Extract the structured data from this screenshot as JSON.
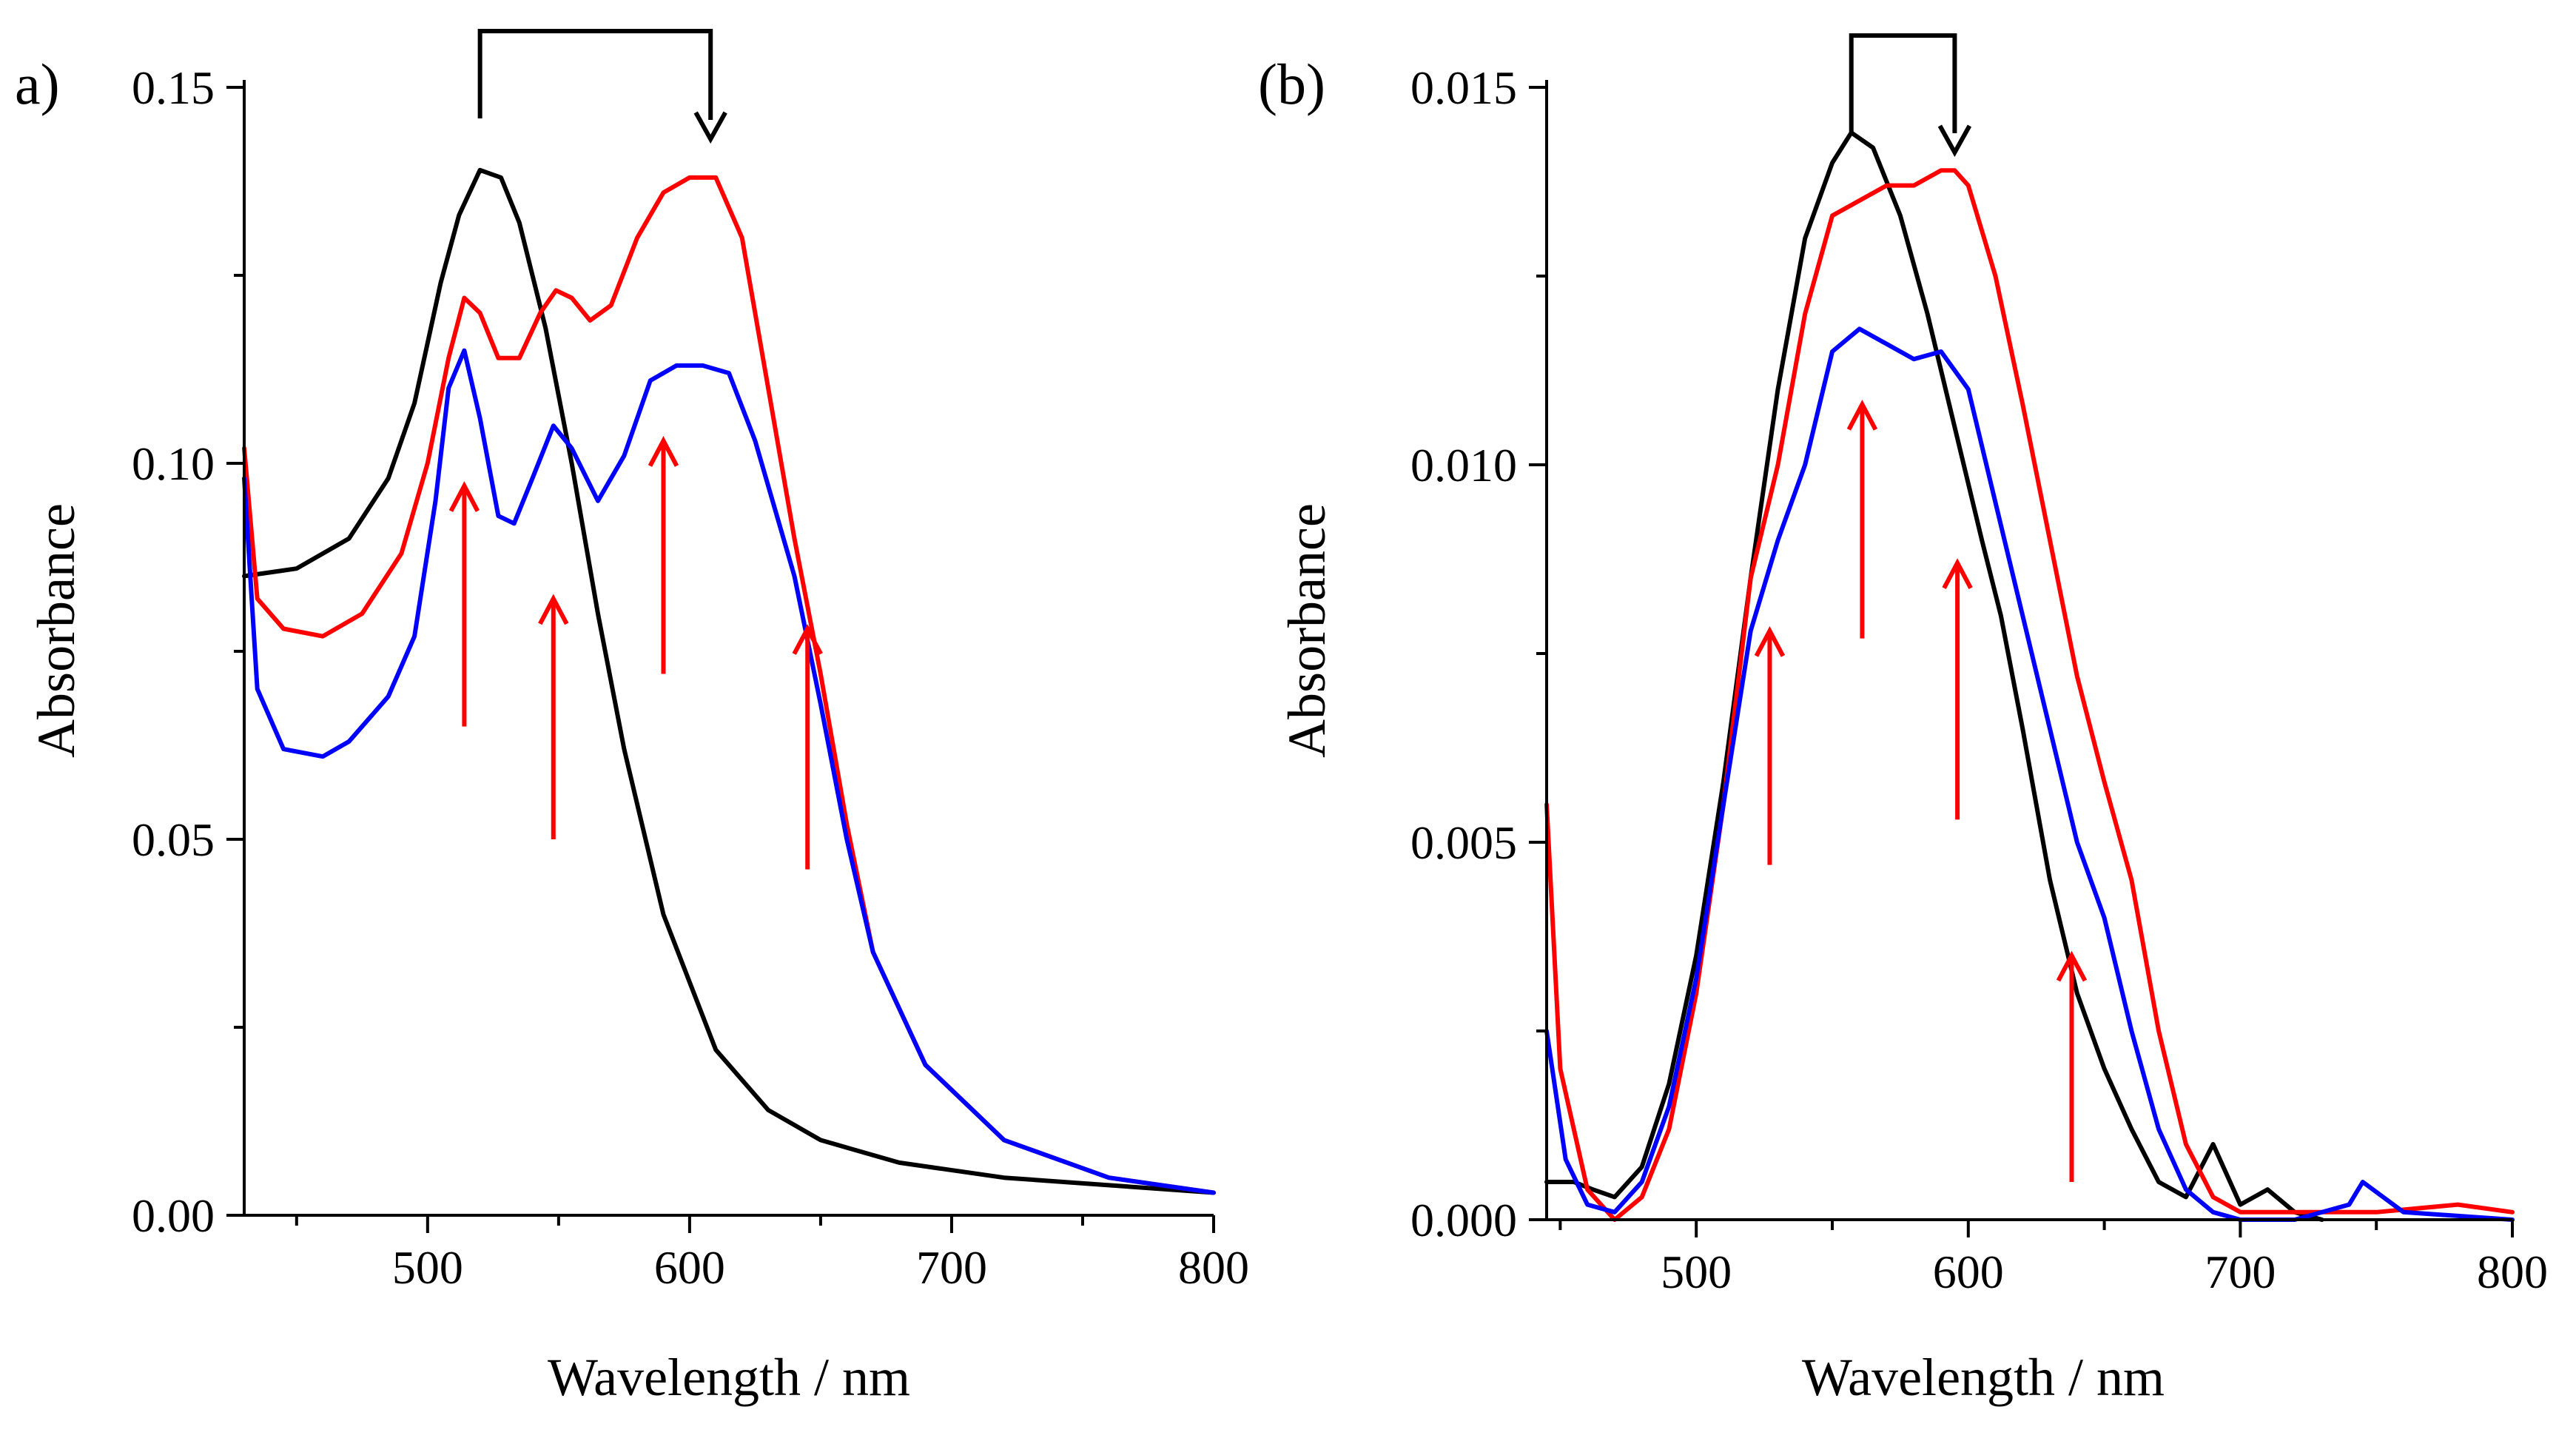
{
  "chart_data": [
    {
      "type": "line",
      "panel_label": "a)",
      "title": "",
      "xlabel": "Wavelength / nm",
      "ylabel": "Absorbance",
      "xlim": [
        430,
        800
      ],
      "ylim": [
        0.0,
        0.15
      ],
      "x_ticks": [
        500,
        600,
        700,
        800
      ],
      "x_tick_labels": [
        "500",
        "600",
        "700",
        "800"
      ],
      "x_minor_ticks": [
        450,
        550,
        650,
        750
      ],
      "y_ticks": [
        0.0,
        0.05,
        0.1,
        0.15
      ],
      "y_tick_labels": [
        "0.00",
        "0.05",
        "0.10",
        "0.15"
      ],
      "y_minor_ticks": [
        0.025,
        0.075,
        0.125
      ],
      "series": [
        {
          "name": "black",
          "color": "#000000",
          "x": [
            430,
            450,
            470,
            485,
            495,
            505,
            512,
            520,
            528,
            535,
            545,
            555,
            565,
            575,
            590,
            610,
            630,
            650,
            680,
            720,
            760,
            800
          ],
          "y": [
            0.085,
            0.086,
            0.09,
            0.098,
            0.108,
            0.124,
            0.133,
            0.139,
            0.138,
            0.132,
            0.118,
            0.1,
            0.08,
            0.062,
            0.04,
            0.022,
            0.014,
            0.01,
            0.007,
            0.005,
            0.004,
            0.003
          ]
        },
        {
          "name": "red",
          "color": "#ff0000",
          "x": [
            430,
            435,
            445,
            460,
            475,
            490,
            500,
            508,
            514,
            520,
            527,
            535,
            543,
            549,
            555,
            562,
            570,
            580,
            590,
            600,
            610,
            620,
            630,
            640,
            650,
            660,
            670,
            690,
            720,
            760,
            800
          ],
          "y": [
            0.102,
            0.082,
            0.078,
            0.077,
            0.08,
            0.088,
            0.1,
            0.114,
            0.122,
            0.12,
            0.114,
            0.114,
            0.12,
            0.123,
            0.122,
            0.119,
            0.121,
            0.13,
            0.136,
            0.138,
            0.138,
            0.13,
            0.11,
            0.09,
            0.072,
            0.052,
            0.035,
            0.02,
            0.01,
            0.005,
            0.003
          ]
        },
        {
          "name": "blue",
          "color": "#0000ff",
          "x": [
            430,
            435,
            445,
            460,
            470,
            485,
            495,
            503,
            508,
            514,
            520,
            527,
            533,
            540,
            548,
            555,
            565,
            575,
            585,
            595,
            605,
            615,
            625,
            640,
            650,
            660,
            670,
            690,
            720,
            760,
            800
          ],
          "y": [
            0.098,
            0.07,
            0.062,
            0.061,
            0.063,
            0.069,
            0.077,
            0.095,
            0.11,
            0.115,
            0.106,
            0.093,
            0.092,
            0.098,
            0.105,
            0.102,
            0.095,
            0.101,
            0.111,
            0.113,
            0.113,
            0.112,
            0.103,
            0.085,
            0.068,
            0.05,
            0.035,
            0.02,
            0.01,
            0.005,
            0.003
          ]
        }
      ],
      "annotations": {
        "bracket_arrow": {
          "from_x": 520,
          "to_x": 608,
          "color": "#000000"
        },
        "up_arrows": {
          "x": [
            514,
            548,
            590,
            645
          ],
          "y_from": [
            0.065,
            0.05,
            0.072,
            0.046
          ],
          "y_to": [
            0.097,
            0.082,
            0.103,
            0.078
          ],
          "color": "#ff0000"
        }
      }
    },
    {
      "type": "line",
      "panel_label": "(b)",
      "title": "",
      "xlabel": "Wavelength / nm",
      "ylabel": "Absorbance",
      "xlim": [
        445,
        800
      ],
      "ylim": [
        0.0,
        0.015
      ],
      "x_ticks": [
        500,
        600,
        700,
        800
      ],
      "x_tick_labels": [
        "500",
        "600",
        "700",
        "800"
      ],
      "x_minor_ticks": [
        450,
        550,
        650,
        750
      ],
      "y_ticks": [
        0.0,
        0.005,
        0.01,
        0.015
      ],
      "y_tick_labels": [
        "0.000",
        "0.005",
        "0.010",
        "0.015"
      ],
      "y_minor_ticks": [
        0.0025,
        0.0075,
        0.0125
      ],
      "series": [
        {
          "name": "black",
          "color": "#000000",
          "x": [
            445,
            455,
            462,
            470,
            480,
            490,
            500,
            510,
            520,
            530,
            540,
            550,
            557,
            565,
            575,
            585,
            595,
            605,
            612,
            620,
            630,
            640,
            650,
            660,
            670,
            680,
            690,
            700,
            710,
            720,
            730
          ],
          "y": [
            0.0005,
            0.0005,
            0.0004,
            0.0003,
            0.0007,
            0.0018,
            0.0035,
            0.0058,
            0.0085,
            0.011,
            0.013,
            0.014,
            0.0144,
            0.0142,
            0.0133,
            0.012,
            0.0105,
            0.009,
            0.008,
            0.0065,
            0.0045,
            0.003,
            0.002,
            0.0012,
            0.0005,
            0.0003,
            0.001,
            0.0002,
            0.0004,
            0.0001,
            0.0
          ]
        },
        {
          "name": "red",
          "color": "#ff0000",
          "x": [
            445,
            450,
            460,
            470,
            480,
            490,
            500,
            510,
            520,
            530,
            540,
            550,
            560,
            570,
            580,
            590,
            595,
            600,
            610,
            620,
            630,
            640,
            650,
            660,
            670,
            680,
            690,
            700,
            720,
            750,
            780,
            800
          ],
          "y": [
            0.0055,
            0.002,
            0.0004,
            0.0,
            0.0003,
            0.0012,
            0.003,
            0.0055,
            0.0085,
            0.01,
            0.012,
            0.0133,
            0.0135,
            0.0137,
            0.0137,
            0.0139,
            0.0139,
            0.0137,
            0.0125,
            0.0108,
            0.009,
            0.0072,
            0.0058,
            0.0045,
            0.0025,
            0.001,
            0.0003,
            0.0001,
            0.0001,
            0.0001,
            0.0002,
            0.0001
          ]
        },
        {
          "name": "blue",
          "color": "#0000ff",
          "x": [
            445,
            452,
            460,
            470,
            480,
            490,
            500,
            510,
            520,
            530,
            540,
            550,
            560,
            570,
            580,
            590,
            600,
            610,
            620,
            630,
            640,
            650,
            660,
            670,
            680,
            690,
            700,
            720,
            740,
            745,
            760,
            800
          ],
          "y": [
            0.0025,
            0.0008,
            0.0002,
            0.0001,
            0.0005,
            0.0015,
            0.0032,
            0.0055,
            0.0078,
            0.009,
            0.01,
            0.0115,
            0.0118,
            0.0116,
            0.0114,
            0.0115,
            0.011,
            0.0095,
            0.008,
            0.0065,
            0.005,
            0.004,
            0.0025,
            0.0012,
            0.0004,
            0.0001,
            0.0,
            0.0,
            0.0002,
            0.0005,
            0.0001,
            0.0
          ]
        }
      ],
      "annotations": {
        "bracket_arrow": {
          "from_x": 557,
          "to_x": 595,
          "color": "#000000"
        },
        "up_arrows": {
          "x": [
            527,
            561,
            596,
            638
          ],
          "y_from": [
            0.0047,
            0.0077,
            0.0053,
            0.0005
          ],
          "y_to": [
            0.0078,
            0.0108,
            0.0087,
            0.0035
          ],
          "color": "#ff0000"
        }
      }
    }
  ]
}
